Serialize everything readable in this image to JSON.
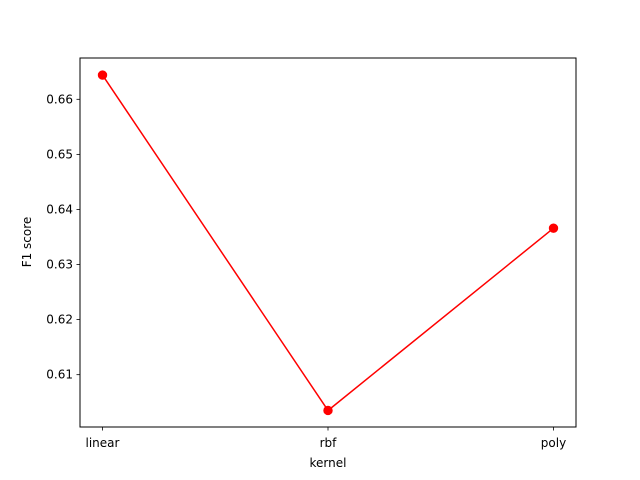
{
  "chart_data": {
    "type": "line",
    "title": "",
    "xlabel": "kernel",
    "ylabel": "F1 score",
    "categories": [
      "linear",
      "rbf",
      "poly"
    ],
    "series": [
      {
        "values": [
          0.6644,
          0.6035,
          0.6366
        ],
        "color": "#ff0000",
        "marker": "circle"
      }
    ],
    "ylim": [
      0.6005,
      0.6675
    ],
    "yticks": [
      "0.61",
      "0.62",
      "0.63",
      "0.64",
      "0.65",
      "0.66"
    ],
    "ytick_values": [
      0.61,
      0.62,
      0.63,
      0.64,
      0.65,
      0.66
    ],
    "grid": false,
    "legend": false
  }
}
